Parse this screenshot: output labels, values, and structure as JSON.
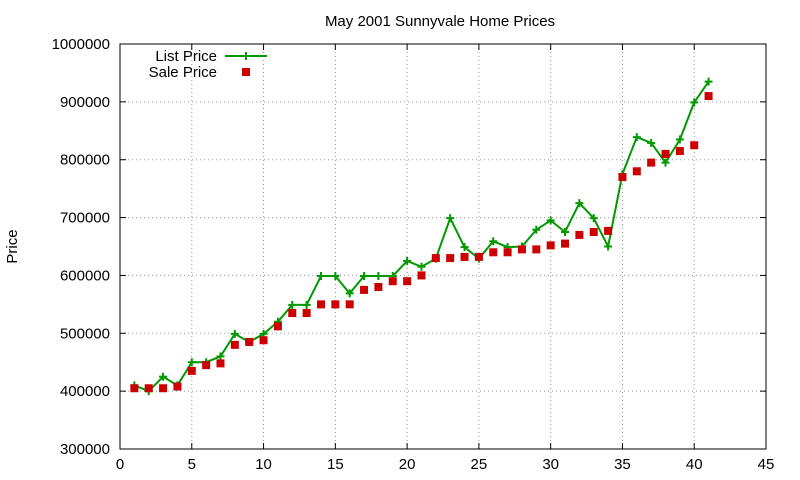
{
  "chart_data": {
    "type": "line",
    "title": "May 2001 Sunnyvale Home Prices",
    "xlabel": "",
    "ylabel": "Price",
    "xlim": [
      0,
      45
    ],
    "ylim": [
      300000,
      1000000
    ],
    "x_ticks": [
      0,
      5,
      10,
      15,
      20,
      25,
      30,
      35,
      40,
      45
    ],
    "y_ticks": [
      300000,
      400000,
      500000,
      600000,
      700000,
      800000,
      900000,
      1000000
    ],
    "grid": true,
    "legend_position": "top-left",
    "x": [
      1,
      2,
      3,
      4,
      5,
      6,
      7,
      8,
      9,
      10,
      11,
      12,
      13,
      14,
      15,
      16,
      17,
      18,
      19,
      20,
      21,
      22,
      23,
      24,
      25,
      26,
      27,
      28,
      29,
      30,
      31,
      32,
      33,
      34,
      35,
      36,
      37,
      38,
      39,
      40,
      41
    ],
    "series": [
      {
        "name": "List Price",
        "style": "line-plus",
        "color": "#009900",
        "values": [
          410000,
          400000,
          425000,
          410000,
          450000,
          450000,
          460000,
          499000,
          485000,
          499000,
          520000,
          549000,
          549000,
          599000,
          599000,
          569000,
          599000,
          599000,
          599000,
          625000,
          615000,
          629000,
          699000,
          649000,
          629000,
          659000,
          649000,
          650000,
          679000,
          695000,
          675000,
          725000,
          699000,
          650000,
          775000,
          839000,
          829000,
          795000,
          835000,
          899000,
          935000
        ]
      },
      {
        "name": "Sale Price",
        "style": "square-markers",
        "color": "#cc0000",
        "values": [
          405000,
          405000,
          405000,
          408000,
          435000,
          445000,
          448000,
          480000,
          485000,
          488000,
          512000,
          535000,
          535000,
          550000,
          550000,
          550000,
          575000,
          580000,
          590000,
          590000,
          600000,
          630000,
          630000,
          632000,
          632000,
          640000,
          640000,
          645000,
          645000,
          652000,
          655000,
          670000,
          675000,
          677000,
          770000,
          780000,
          795000,
          810000,
          815000,
          825000,
          910000
        ]
      }
    ]
  }
}
